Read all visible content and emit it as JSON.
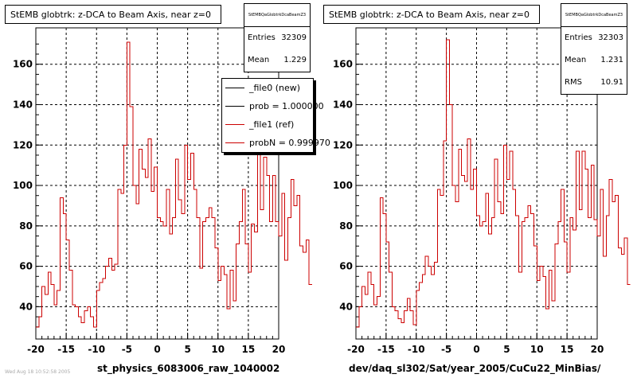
{
  "chart_data": [
    {
      "type": "line",
      "title": "StEMB globtrk: z-DCA to Beam Axis, near z=0",
      "xlabel": "st_physics_6083006_raw_1040002",
      "ylabel": "",
      "xlim": [
        -20,
        20
      ],
      "ylim": [
        24,
        178
      ],
      "x_ticks": [
        "-20",
        "-15",
        "-10",
        "-5",
        "0",
        "5",
        "10",
        "15",
        "20"
      ],
      "y_ticks": [
        "40",
        "60",
        "80",
        "100",
        "120",
        "140",
        "160"
      ],
      "grid": true,
      "stats": {
        "name": "StEMBQaGlobtrkDcaBeamZ3",
        "entries_label": "Entries",
        "entries": "32309",
        "mean_label": "Mean",
        "mean": "1.229"
      },
      "legend": {
        "placement": "top-right",
        "entries": [
          {
            "label": "_file0 (new)",
            "color": "#000000"
          },
          {
            "label": "prob = 1.000000",
            "color": "#000000"
          },
          {
            "label": "_file1 (ref)",
            "color": "#cc0000"
          },
          {
            "label": "probN = 0.999970",
            "color": "#cc0000"
          }
        ]
      },
      "series": [
        {
          "color": "#cc0000",
          "x_start": -20,
          "bin_width": 0.5,
          "values": [
            30,
            35,
            50,
            46,
            57,
            51,
            41,
            48,
            94,
            86,
            73,
            58,
            41,
            40,
            35,
            32,
            38,
            40,
            35,
            30,
            48,
            52,
            54,
            60,
            64,
            58,
            61,
            98,
            96,
            120,
            171,
            139,
            100,
            91,
            118,
            108,
            104,
            123,
            97,
            109,
            84,
            82,
            80,
            98,
            76,
            84,
            113,
            93,
            86,
            120,
            103,
            116,
            98,
            84,
            59,
            82,
            84,
            89,
            84,
            69,
            53,
            60,
            56,
            39,
            58,
            43,
            71,
            82,
            98,
            71,
            57,
            81,
            77,
            120,
            88,
            114,
            105,
            82,
            105,
            82,
            75,
            96,
            63,
            84,
            103,
            90,
            95,
            70,
            67,
            73,
            51
          ]
        }
      ]
    },
    {
      "type": "line",
      "title": "StEMB globtrk: z-DCA to Beam Axis, near z=0",
      "xlabel": "dev/daq_sl302/Sat/year_2005/CuCu22_MinBias/",
      "ylabel": "",
      "xlim": [
        -20,
        20
      ],
      "ylim": [
        24,
        178
      ],
      "x_ticks": [
        "-20",
        "-15",
        "-10",
        "-5",
        "0",
        "5",
        "10",
        "15",
        "20"
      ],
      "y_ticks": [
        "40",
        "60",
        "80",
        "100",
        "120",
        "140",
        "160"
      ],
      "grid": true,
      "stats": {
        "name": "StEMBQaGlobtrkDcaBeamZ3",
        "entries_label": "Entries",
        "entries": "32303",
        "mean_label": "Mean",
        "mean": "1.231",
        "rms_label": "RMS",
        "rms": "10.91"
      },
      "series": [
        {
          "color": "#cc0000",
          "x_start": -20,
          "bin_width": 0.5,
          "values": [
            30,
            40,
            50,
            46,
            57,
            51,
            41,
            45,
            94,
            86,
            72,
            57,
            40,
            38,
            34,
            32,
            38,
            44,
            38,
            31,
            48,
            52,
            56,
            65,
            60,
            56,
            62,
            98,
            95,
            122,
            172,
            140,
            100,
            92,
            118,
            105,
            102,
            123,
            98,
            108,
            85,
            80,
            82,
            96,
            76,
            84,
            113,
            92,
            86,
            120,
            103,
            117,
            98,
            85,
            57,
            82,
            84,
            90,
            86,
            70,
            53,
            60,
            55,
            39,
            58,
            43,
            71,
            82,
            98,
            72,
            57,
            84,
            78,
            117,
            88,
            117,
            108,
            84,
            110,
            83,
            75,
            98,
            65,
            85,
            103,
            92,
            95,
            69,
            66,
            74,
            51
          ]
        }
      ]
    }
  ],
  "footer_text": "Wed Aug 18 10:52:58 2005"
}
